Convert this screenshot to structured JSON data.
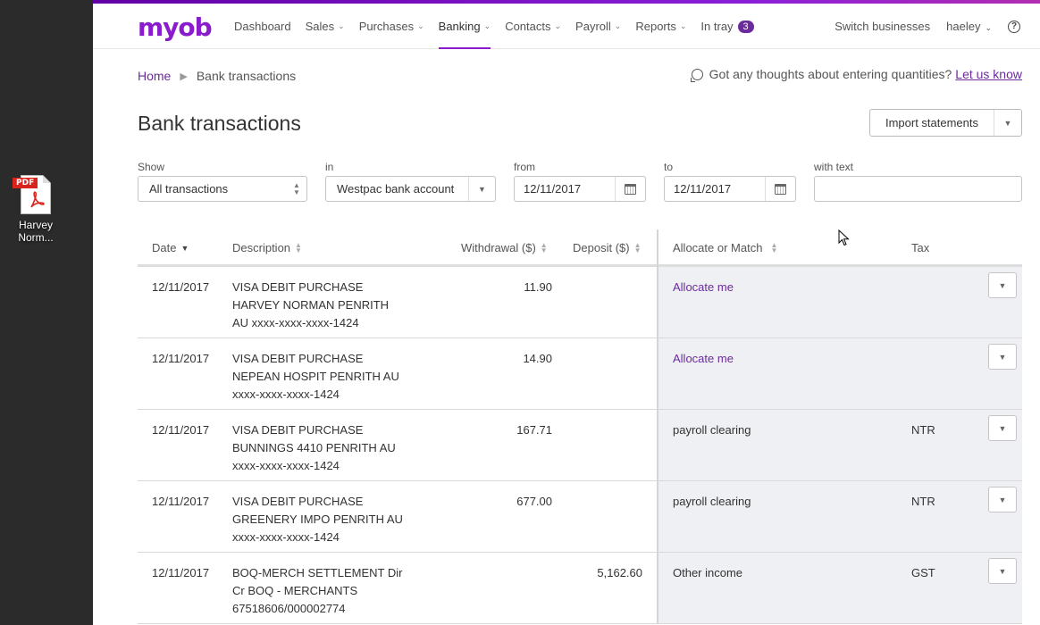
{
  "desktop": {
    "file_label": "Harvey Norm...",
    "file_badge": "PDF"
  },
  "brand": {
    "logo": "myob",
    "accent": "#8a1ccd"
  },
  "nav": {
    "items": [
      {
        "label": "Dashboard",
        "dropdown": false
      },
      {
        "label": "Sales",
        "dropdown": true
      },
      {
        "label": "Purchases",
        "dropdown": true
      },
      {
        "label": "Banking",
        "dropdown": true,
        "active": true
      },
      {
        "label": "Contacts",
        "dropdown": true
      },
      {
        "label": "Payroll",
        "dropdown": true
      },
      {
        "label": "Reports",
        "dropdown": true
      },
      {
        "label": "In tray",
        "badge": "3"
      }
    ],
    "switch_businesses": "Switch businesses",
    "user": "haeley",
    "help": "?"
  },
  "breadcrumb": {
    "home": "Home",
    "current": "Bank transactions"
  },
  "feedback": {
    "text": "Got any thoughts about entering quantities?",
    "link": "Let us know"
  },
  "page_title": "Bank transactions",
  "import_button": "Import statements",
  "filters": {
    "show": {
      "label": "Show",
      "value": "All transactions"
    },
    "in": {
      "label": "in",
      "value": "Westpac bank account"
    },
    "from": {
      "label": "from",
      "value": "12/11/2017"
    },
    "to": {
      "label": "to",
      "value": "12/11/2017"
    },
    "with_text": {
      "label": "with text",
      "value": ""
    }
  },
  "table": {
    "headers": {
      "date": "Date",
      "description": "Description",
      "withdrawal": "Withdrawal ($)",
      "deposit": "Deposit ($)",
      "allocate": "Allocate or Match",
      "tax": "Tax"
    },
    "rows": [
      {
        "date": "12/11/2017",
        "desc": [
          "VISA DEBIT PURCHASE",
          "HARVEY NORMAN PENRITH",
          "AU xxxx-xxxx-xxxx-1424"
        ],
        "withdrawal": "11.90",
        "deposit": "",
        "allocate": "Allocate me",
        "allocate_link": true,
        "tax": ""
      },
      {
        "date": "12/11/2017",
        "desc": [
          "VISA DEBIT PURCHASE",
          "NEPEAN HOSPIT PENRITH AU",
          "xxxx-xxxx-xxxx-1424"
        ],
        "withdrawal": "14.90",
        "deposit": "",
        "allocate": "Allocate me",
        "allocate_link": true,
        "tax": ""
      },
      {
        "date": "12/11/2017",
        "desc": [
          "VISA DEBIT PURCHASE",
          "BUNNINGS 4410 PENRITH AU",
          "xxxx-xxxx-xxxx-1424"
        ],
        "withdrawal": "167.71",
        "deposit": "",
        "allocate": "payroll clearing",
        "allocate_link": false,
        "tax": "NTR"
      },
      {
        "date": "12/11/2017",
        "desc": [
          "VISA DEBIT PURCHASE",
          "GREENERY IMPO PENRITH AU",
          "xxxx-xxxx-xxxx-1424"
        ],
        "withdrawal": "677.00",
        "deposit": "",
        "allocate": "payroll clearing",
        "allocate_link": false,
        "tax": "NTR"
      },
      {
        "date": "12/11/2017",
        "desc": [
          "BOQ-MERCH SETTLEMENT Dir",
          "Cr BOQ - MERCHANTS",
          "67518606/000002774"
        ],
        "withdrawal": "",
        "deposit": "5,162.60",
        "allocate": "Other income",
        "allocate_link": false,
        "tax": "GST"
      }
    ]
  }
}
